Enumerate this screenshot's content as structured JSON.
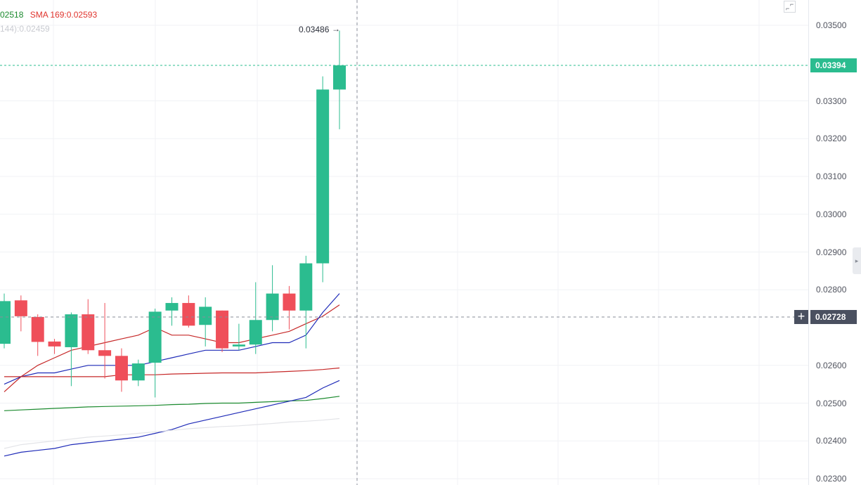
{
  "legend": {
    "item1_text": "02518",
    "item2_text": "SMA 169:0.02593",
    "item3_text": "144):0.02459"
  },
  "high_marker": {
    "label": "0.03486",
    "arrow": "→"
  },
  "last_price": {
    "value": 0.03394,
    "label": "0.03394",
    "color": "#2bbc8f"
  },
  "crosshair": {
    "price": 0.02728,
    "label": "0.02728",
    "plus_glyph": "+"
  },
  "icons": {
    "fullscreen": "fullscreen-toggle-icon",
    "collapse": "panel-collapse-icon"
  },
  "chart_data": {
    "type": "candlestick",
    "y_range": [
      0.023,
      0.0355
    ],
    "y_ticks": [
      {
        "value": 0.035,
        "label": "0.03500"
      },
      {
        "value": 0.033,
        "label": "0.03300"
      },
      {
        "value": 0.032,
        "label": "0.03200"
      },
      {
        "value": 0.031,
        "label": "0.03100"
      },
      {
        "value": 0.03,
        "label": "0.03000"
      },
      {
        "value": 0.029,
        "label": "0.02900"
      },
      {
        "value": 0.028,
        "label": "0.02800"
      },
      {
        "value": 0.026,
        "label": "0.02600"
      },
      {
        "value": 0.025,
        "label": "0.02500"
      },
      {
        "value": 0.024,
        "label": "0.02400"
      },
      {
        "value": 0.023,
        "label": "0.02300"
      }
    ],
    "up_color": "#2bbc8f",
    "down_color": "#ef4f5a",
    "candles": [
      {
        "o": 0.02657,
        "h": 0.0279,
        "l": 0.02645,
        "c": 0.0277
      },
      {
        "o": 0.02772,
        "h": 0.02785,
        "l": 0.0269,
        "c": 0.0273
      },
      {
        "o": 0.02728,
        "h": 0.02735,
        "l": 0.02625,
        "c": 0.02662
      },
      {
        "o": 0.02663,
        "h": 0.0267,
        "l": 0.0263,
        "c": 0.0265
      },
      {
        "o": 0.02648,
        "h": 0.0274,
        "l": 0.02545,
        "c": 0.02735
      },
      {
        "o": 0.02735,
        "h": 0.02775,
        "l": 0.0263,
        "c": 0.0264
      },
      {
        "o": 0.0264,
        "h": 0.02765,
        "l": 0.02565,
        "c": 0.02625
      },
      {
        "o": 0.02625,
        "h": 0.02645,
        "l": 0.0253,
        "c": 0.0256
      },
      {
        "o": 0.0256,
        "h": 0.02615,
        "l": 0.02545,
        "c": 0.02605
      },
      {
        "o": 0.02607,
        "h": 0.0275,
        "l": 0.02515,
        "c": 0.02742
      },
      {
        "o": 0.02745,
        "h": 0.0278,
        "l": 0.02705,
        "c": 0.02765
      },
      {
        "o": 0.02765,
        "h": 0.02785,
        "l": 0.027,
        "c": 0.02705
      },
      {
        "o": 0.02707,
        "h": 0.0278,
        "l": 0.0265,
        "c": 0.02755
      },
      {
        "o": 0.02745,
        "h": 0.02745,
        "l": 0.02635,
        "c": 0.02645
      },
      {
        "o": 0.0265,
        "h": 0.0271,
        "l": 0.0264,
        "c": 0.02655
      },
      {
        "o": 0.02655,
        "h": 0.0282,
        "l": 0.0263,
        "c": 0.0272
      },
      {
        "o": 0.0272,
        "h": 0.02865,
        "l": 0.0269,
        "c": 0.0279
      },
      {
        "o": 0.0279,
        "h": 0.0281,
        "l": 0.02695,
        "c": 0.02745
      },
      {
        "o": 0.02745,
        "h": 0.0289,
        "l": 0.02645,
        "c": 0.0287
      },
      {
        "o": 0.0287,
        "h": 0.03365,
        "l": 0.0282,
        "c": 0.0333
      },
      {
        "o": 0.0333,
        "h": 0.03486,
        "l": 0.03225,
        "c": 0.03394
      }
    ],
    "series": [
      {
        "color": "#c62828",
        "values": [
          0.0253,
          0.0257,
          0.026,
          0.0262,
          0.0264,
          0.0265,
          0.0266,
          0.0267,
          0.0268,
          0.027,
          0.0268,
          0.0268,
          0.0267,
          0.0266,
          0.0266,
          0.0267,
          0.0268,
          0.0269,
          0.0271,
          0.0273,
          0.0276
        ]
      },
      {
        "color": "#1f2bb8",
        "values": [
          0.0255,
          0.0257,
          0.0258,
          0.0258,
          0.0259,
          0.026,
          0.026,
          0.026,
          0.026,
          0.0261,
          0.0262,
          0.0263,
          0.0264,
          0.0264,
          0.0264,
          0.0265,
          0.0266,
          0.0266,
          0.0268,
          0.0274,
          0.0279
        ]
      },
      {
        "color": "#c62828",
        "values": [
          0.0257,
          0.0257,
          0.0257,
          0.0257,
          0.0257,
          0.0257,
          0.0257,
          0.02575,
          0.02575,
          0.02575,
          0.02577,
          0.02578,
          0.02579,
          0.0258,
          0.0258,
          0.0258,
          0.02582,
          0.02584,
          0.02586,
          0.02589,
          0.02593
        ]
      },
      {
        "color": "#1b8a2e",
        "values": [
          0.0248,
          0.02482,
          0.02484,
          0.02486,
          0.02488,
          0.0249,
          0.02491,
          0.02492,
          0.02493,
          0.02494,
          0.02496,
          0.02497,
          0.02499,
          0.025,
          0.025,
          0.02502,
          0.02504,
          0.02506,
          0.02507,
          0.02512,
          0.02518
        ]
      },
      {
        "color": "#1f2bb8",
        "values": [
          0.0236,
          0.0237,
          0.02375,
          0.0238,
          0.0239,
          0.02395,
          0.024,
          0.02405,
          0.0241,
          0.0242,
          0.0243,
          0.02445,
          0.02455,
          0.02465,
          0.02475,
          0.02485,
          0.02495,
          0.02505,
          0.02515,
          0.0254,
          0.0256
        ]
      },
      {
        "color": "#e3e4e8",
        "values": [
          0.0238,
          0.0239,
          0.02395,
          0.024,
          0.02405,
          0.0241,
          0.02413,
          0.02416,
          0.0242,
          0.02424,
          0.02428,
          0.02432,
          0.02435,
          0.02438,
          0.0244,
          0.02443,
          0.02446,
          0.0245,
          0.02452,
          0.02455,
          0.02459
        ]
      }
    ]
  }
}
